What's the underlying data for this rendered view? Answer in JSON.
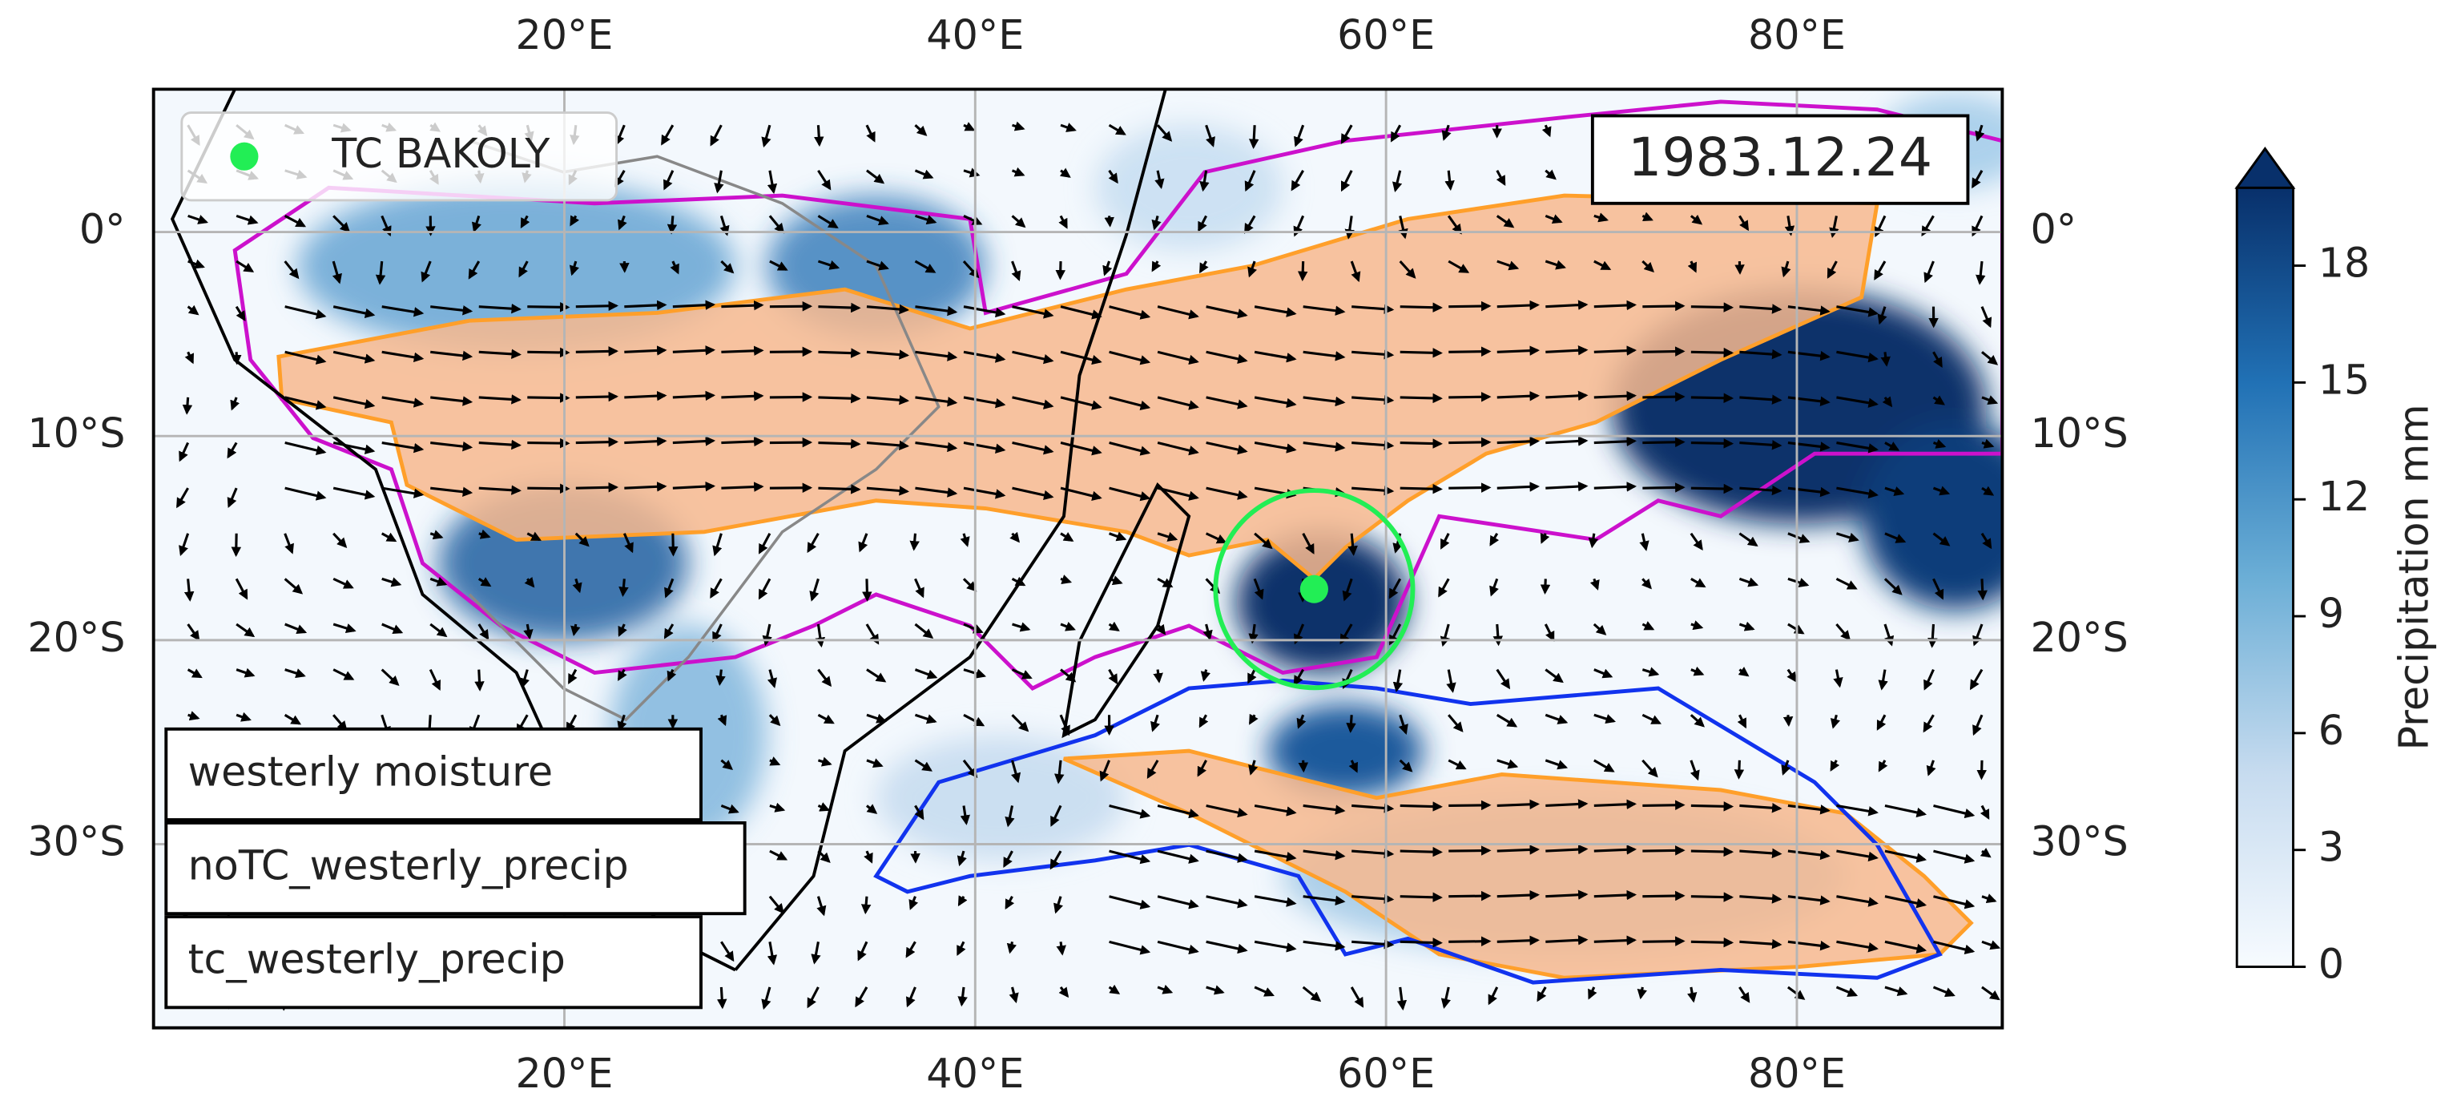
{
  "chart_data": {
    "type": "map",
    "date_label": "1983.12.24",
    "xlim": [
      0,
      90
    ],
    "ylim": [
      -39,
      7
    ],
    "xticks": [
      {
        "value": 20,
        "label": "20°E"
      },
      {
        "value": 40,
        "label": "40°E"
      },
      {
        "value": 60,
        "label": "60°E"
      },
      {
        "value": 80,
        "label": "80°E"
      }
    ],
    "yticks": [
      {
        "value": 0,
        "label": "0°"
      },
      {
        "value": -10,
        "label": "10°S"
      },
      {
        "value": -20,
        "label": "20°S"
      },
      {
        "value": -30,
        "label": "30°S"
      }
    ],
    "grid": true,
    "tc": {
      "name": "TC BAKOLY",
      "color": "#22ee55",
      "lon": 56.5,
      "lat": -17.5,
      "radius": 4.8
    },
    "contours": [
      {
        "name": "westerly moisture",
        "color": "#ff9f2a"
      },
      {
        "name": "noTC_westerly_precip",
        "color": "#1133ee"
      },
      {
        "name": "tc_westerly_precip",
        "color": "#cc11cc"
      }
    ],
    "colorbar": {
      "label": "Precipitation mm",
      "clim": [
        0,
        20
      ],
      "ticks": [
        0,
        3,
        6,
        9,
        12,
        15,
        18
      ]
    }
  }
}
